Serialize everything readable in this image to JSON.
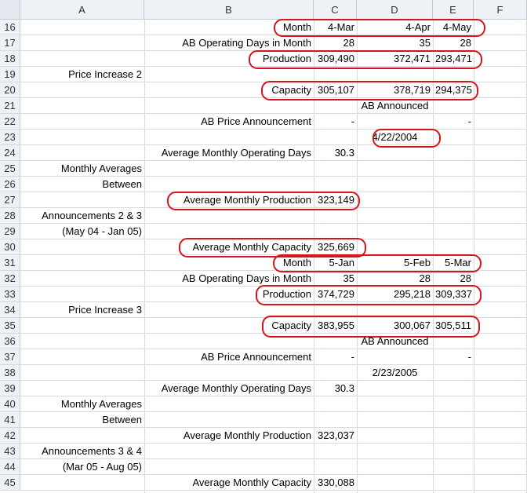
{
  "columns": [
    "A",
    "B",
    "C",
    "D",
    "E",
    "F"
  ],
  "rows": [
    "16",
    "17",
    "18",
    "19",
    "20",
    "21",
    "22",
    "23",
    "24",
    "25",
    "26",
    "27",
    "28",
    "29",
    "30",
    "31",
    "32",
    "33",
    "34",
    "35",
    "36",
    "37",
    "38",
    "39",
    "40",
    "41",
    "42",
    "43",
    "44",
    "45"
  ],
  "cells": {
    "b16": "Month",
    "c16": "4-Mar",
    "d16": "4-Apr",
    "e16": "4-May",
    "b17": "AB Operating Days in Month",
    "c17": "28",
    "d17": "35",
    "e17": "28",
    "b18": "Production",
    "c18": "309,490",
    "d18": "372,471",
    "e18": "293,471",
    "a19": "Price Increase 2",
    "b20": "Capacity",
    "c20": "305,107",
    "d20": "378,719",
    "e20": "294,375",
    "d21": "AB Announced",
    "b22": "AB Price Announcement",
    "c22": "-",
    "e22": "-",
    "d23": "4/22/2004",
    "b24": "Average Monthly Operating Days",
    "c24": "30.3",
    "a25": "Monthly Averages",
    "a26": "Between",
    "b27": "Average Monthly Production",
    "c27": "323,149",
    "a28": "Announcements 2 & 3",
    "a29": "(May 04 - Jan 05)",
    "b30": "Average Monthly Capacity",
    "c30": "325,669",
    "b31": "Month",
    "c31": "5-Jan",
    "d31": "5-Feb",
    "e31": "5-Mar",
    "b32": "AB Operating Days in Month",
    "c32": "35",
    "d32": "28",
    "e32": "28",
    "b33": "Production",
    "c33": "374,729",
    "d33": "295,218",
    "e33": "309,337",
    "a34": "Price Increase 3",
    "b35": "Capacity",
    "c35": "383,955",
    "d35": "300,067",
    "e35": "305,511",
    "d36": "AB Announced",
    "b37": "AB Price Announcement",
    "c37": "-",
    "e37": "-",
    "d38": "2/23/2005",
    "b39": "Average Monthly Operating Days",
    "c39": "30.3",
    "a40": "Monthly Averages",
    "a41": "Between",
    "b42": "Average Monthly Production",
    "c42": "323,037",
    "a43": "Announcements 3 & 4",
    "a44": "(Mar 05 - Aug 05)",
    "b45": "Average Monthly Capacity",
    "c45": "330,088"
  },
  "colors": {
    "annotation_oval": "#d7141a",
    "header_bg": "#eef1f6",
    "gridline": "#d8dce2"
  }
}
